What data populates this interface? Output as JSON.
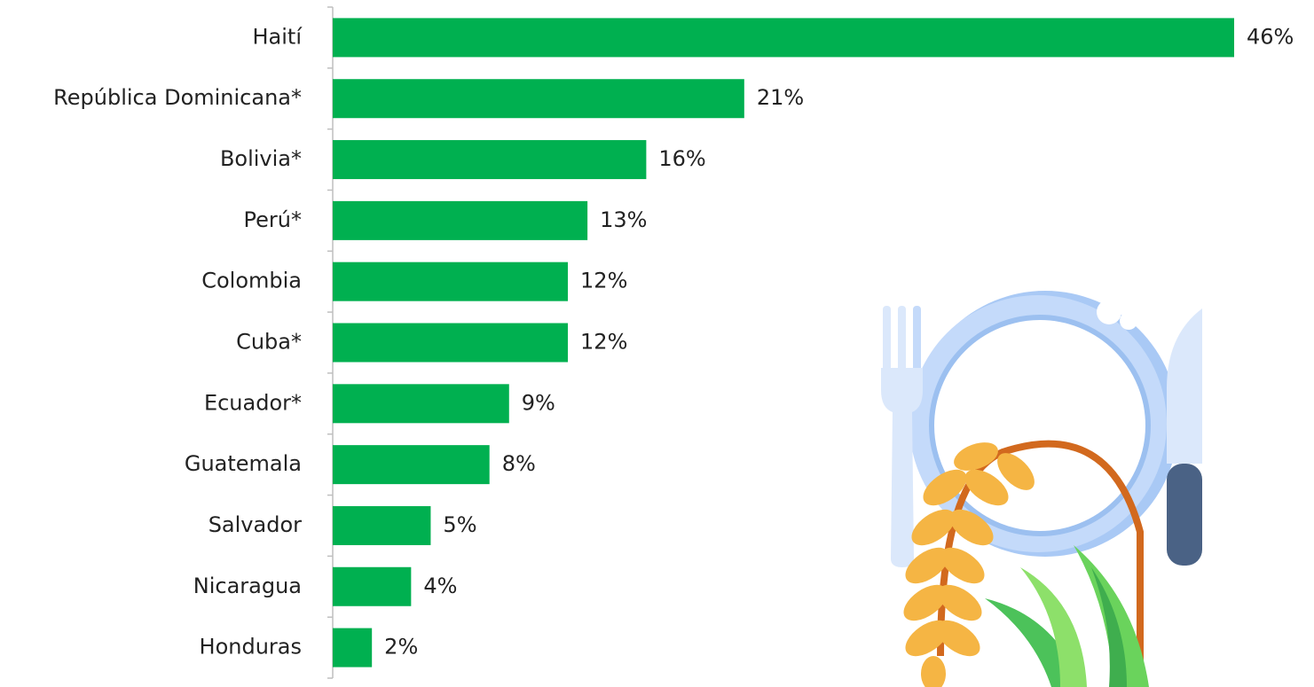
{
  "chart_data": {
    "type": "bar",
    "orientation": "horizontal",
    "categories": [
      "Haití",
      "República Dominicana*",
      "Bolivia*",
      "Perú*",
      "Colombia",
      "Cuba*",
      "Ecuador*",
      "Guatemala",
      "Salvador",
      "Nicaragua",
      "Honduras"
    ],
    "values": [
      46,
      21,
      16,
      13,
      12,
      12,
      9,
      8,
      5,
      4,
      2
    ],
    "value_labels": [
      "46%",
      "21%",
      "16%",
      "13%",
      "12%",
      "12%",
      "9%",
      "8%",
      "5%",
      "4%",
      "2%"
    ],
    "color": "#00b050"
  }
}
